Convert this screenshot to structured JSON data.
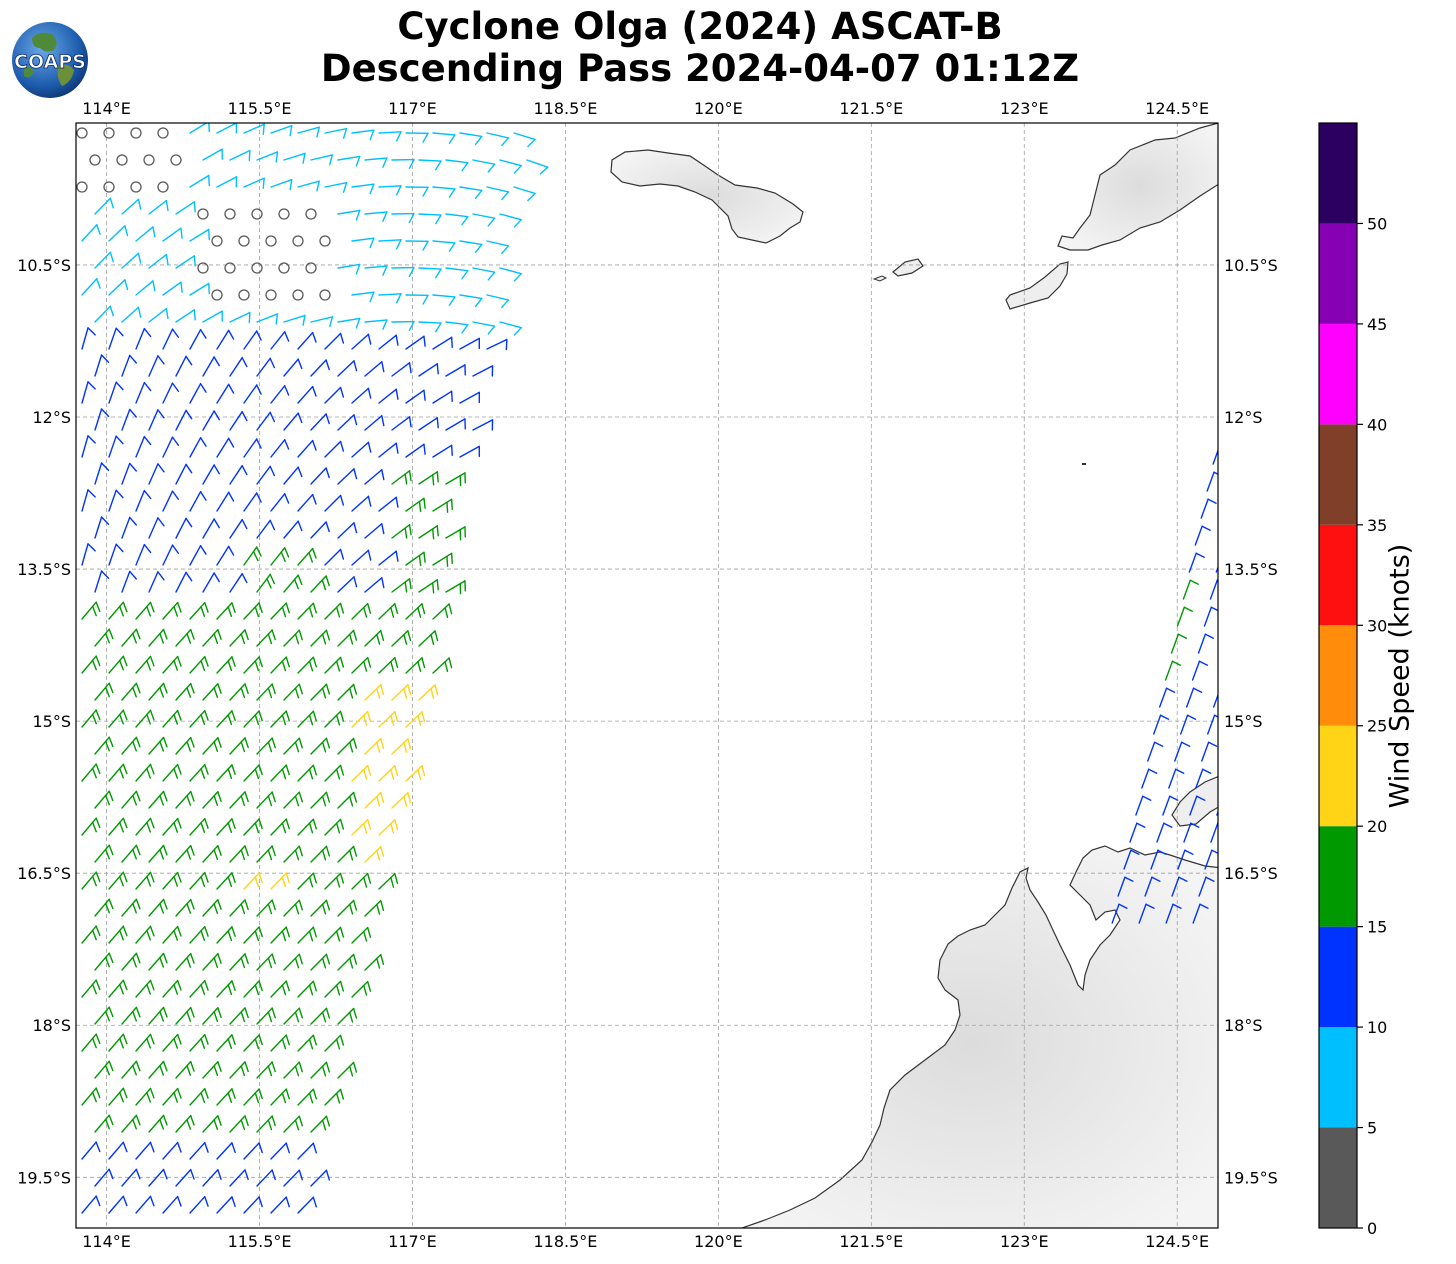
{
  "header": {
    "title_line1": "Cyclone Olga (2024) ASCAT-B",
    "title_line2": "Descending Pass 2024-04-07 01:12Z",
    "logo_text": "COAPS"
  },
  "map": {
    "lon_labels": [
      "114°E",
      "115.5°E",
      "117°E",
      "118.5°E",
      "120°E",
      "121.5°E",
      "123°E",
      "124.5°E"
    ],
    "lon_values": [
      114,
      115.5,
      117,
      118.5,
      120,
      121.5,
      123,
      124.5
    ],
    "lat_labels": [
      "10.5°S",
      "12°S",
      "13.5°S",
      "15°S",
      "16.5°S",
      "18°S",
      "19.5°S"
    ],
    "lat_values": [
      -10.5,
      -12,
      -13.5,
      -15,
      -16.5,
      -18,
      -19.5
    ],
    "lon_range": [
      113.7,
      124.9
    ],
    "lat_range": [
      -20.0,
      -9.1
    ],
    "grid": true,
    "land_color": "#eeeeee",
    "coast_color": "#333333"
  },
  "colorbar": {
    "label": "Wind Speed (knots)",
    "ticks": [
      "0",
      "5",
      "10",
      "15",
      "20",
      "25",
      "30",
      "35",
      "40",
      "45",
      "50"
    ],
    "bins": [
      {
        "min": 0,
        "max": 5,
        "color": "#595959"
      },
      {
        "min": 5,
        "max": 10,
        "color": "#00bfff"
      },
      {
        "min": 10,
        "max": 15,
        "color": "#0033ff"
      },
      {
        "min": 15,
        "max": 20,
        "color": "#009900"
      },
      {
        "min": 20,
        "max": 25,
        "color": "#ffd316"
      },
      {
        "min": 25,
        "max": 30,
        "color": "#ff8c0a"
      },
      {
        "min": 30,
        "max": 35,
        "color": "#ff1010"
      },
      {
        "min": 35,
        "max": 40,
        "color": "#7f3f28"
      },
      {
        "min": 40,
        "max": 45,
        "color": "#ff00ff"
      },
      {
        "min": 45,
        "max": 50,
        "color": "#8600b4"
      },
      {
        "min": 50,
        "max": 55,
        "color": "#2c0060"
      }
    ]
  },
  "wind_regions": [
    {
      "name": "calm-area-northwest",
      "speed_knots": "0-5",
      "color": "#595959"
    },
    {
      "name": "light-winds-north",
      "speed_knots": "5-10",
      "color": "#00bfff"
    },
    {
      "name": "moderate-winds-central",
      "speed_knots": "10-15",
      "color": "#0033ff"
    },
    {
      "name": "fresh-winds-south",
      "speed_knots": "15-20",
      "color": "#009900"
    },
    {
      "name": "strong-winds-patch",
      "speed_knots": "20-25",
      "color": "#ffd316"
    }
  ]
}
